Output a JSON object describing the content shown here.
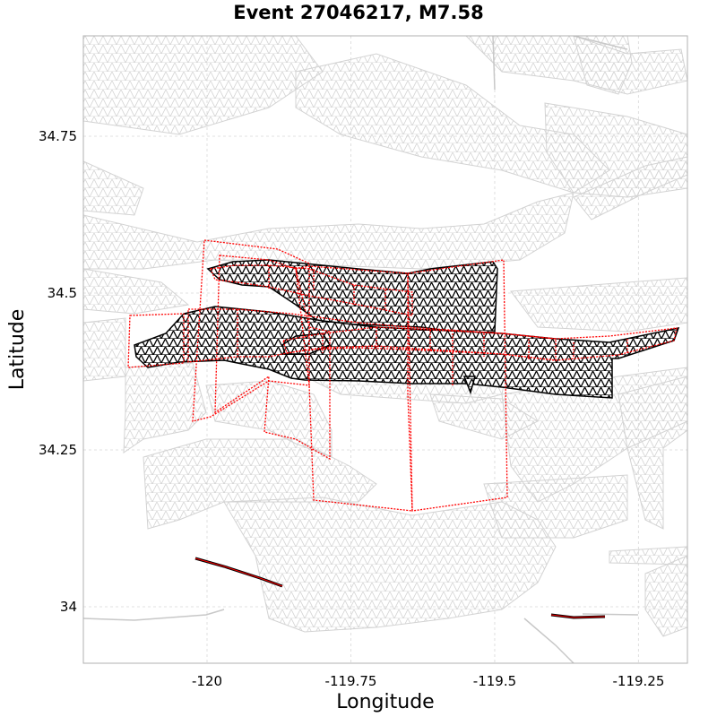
{
  "title": "Event 27046217, M7.58",
  "map": {
    "xlabel": "Longitude",
    "ylabel": "Latitude",
    "xlim": [
      -120.215,
      -119.165
    ],
    "ylim": [
      33.91,
      34.91
    ],
    "grid": true,
    "x_ticks": [
      {
        "value": -120,
        "label": "-120"
      },
      {
        "value": -119.75,
        "label": "-119.75"
      },
      {
        "value": -119.5,
        "label": "-119.5"
      },
      {
        "value": -119.25,
        "label": "-119.25"
      }
    ],
    "y_ticks": [
      {
        "value": 34.75,
        "label": "34.75"
      },
      {
        "value": 34.5,
        "label": "34.5"
      },
      {
        "value": 34.25,
        "label": "34.25"
      },
      {
        "value": 34,
        "label": "34"
      }
    ],
    "colors": {
      "background_mesh": "#d3d3d3",
      "rupture_mesh": "#000000",
      "rupture_outline": "#ff0000",
      "coastline": "#c8c8c8",
      "frame": "#b0b0b0"
    }
  }
}
